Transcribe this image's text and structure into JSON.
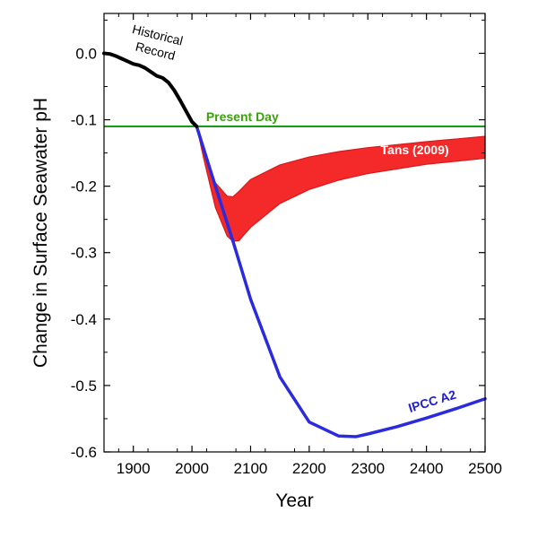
{
  "chart_data": {
    "type": "line",
    "xlabel": "Year",
    "ylabel": "Change in Surface Seawater pH",
    "xlim": [
      1850,
      2500
    ],
    "ylim": [
      -0.6,
      0.06
    ],
    "x_ticks": [
      1900,
      2000,
      2100,
      2200,
      2300,
      2400,
      2500
    ],
    "x_tick_labels": [
      "1900",
      "2000",
      "2100",
      "2200",
      "2300",
      "2400",
      "2500"
    ],
    "y_ticks": [
      0.0,
      -0.1,
      -0.2,
      -0.3,
      -0.4,
      -0.5,
      -0.6
    ],
    "y_tick_labels": [
      "0.0",
      "-0.1",
      "-0.2",
      "-0.3",
      "-0.4",
      "-0.5",
      "-0.6"
    ],
    "grid": false,
    "legend": "none",
    "colors": {
      "historical": "#000000",
      "present_day": "#1a9a1a",
      "present_day_label": "#3aa00e",
      "tans": "#f42a2a",
      "tans_edge": "#d81818",
      "ipcc": "#2b2bde",
      "ipcc_label": "#2020d0"
    },
    "annotations": {
      "historical": "Historical\nRecord",
      "present_day": "Present Day",
      "tans": "Tans (2009)",
      "ipcc": "IPCC A2"
    },
    "series": [
      {
        "name": "Historical Record",
        "x": [
          1850,
          1860,
          1870,
          1880,
          1890,
          1900,
          1910,
          1920,
          1930,
          1940,
          1950,
          1960,
          1970,
          1980,
          1990,
          2000,
          2008
        ],
        "y": [
          0.0,
          -0.001,
          -0.004,
          -0.008,
          -0.012,
          -0.016,
          -0.018,
          -0.022,
          -0.028,
          -0.034,
          -0.037,
          -0.044,
          -0.056,
          -0.071,
          -0.087,
          -0.103,
          -0.11
        ]
      },
      {
        "name": "Present Day",
        "x": [
          1850,
          2500
        ],
        "y": [
          -0.11,
          -0.11
        ]
      },
      {
        "name": "Tans (2009)",
        "type": "band",
        "x": [
          2008,
          2020,
          2040,
          2060,
          2070,
          2080,
          2100,
          2150,
          2200,
          2250,
          2300,
          2400,
          2500
        ],
        "upper": [
          -0.11,
          -0.145,
          -0.195,
          -0.215,
          -0.216,
          -0.208,
          -0.19,
          -0.168,
          -0.156,
          -0.148,
          -0.142,
          -0.133,
          -0.125
        ],
        "lower": [
          -0.11,
          -0.158,
          -0.232,
          -0.275,
          -0.283,
          -0.282,
          -0.262,
          -0.226,
          -0.205,
          -0.191,
          -0.181,
          -0.167,
          -0.158
        ]
      },
      {
        "name": "IPCC A2",
        "x": [
          2008,
          2040,
          2070,
          2100,
          2150,
          2200,
          2250,
          2280,
          2300,
          2350,
          2400,
          2450,
          2500
        ],
        "y": [
          -0.11,
          -0.2,
          -0.283,
          -0.37,
          -0.487,
          -0.555,
          -0.576,
          -0.577,
          -0.573,
          -0.562,
          -0.549,
          -0.535,
          -0.52
        ]
      }
    ]
  }
}
